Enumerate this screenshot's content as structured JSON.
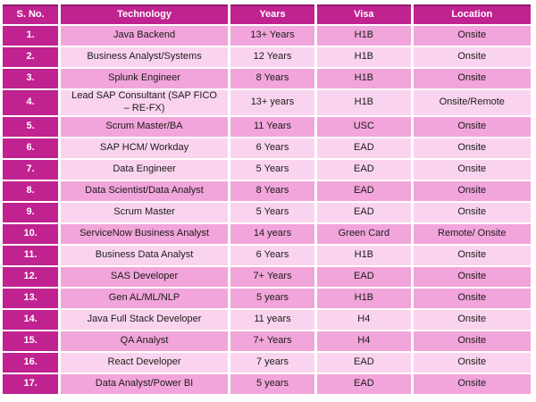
{
  "colors": {
    "header_bg": "#c02290",
    "header_border": "#8e1a6b",
    "header_text": "#ffffff",
    "row_dark": "#f2a5da",
    "row_light": "#fad4ee",
    "cell_text": "#1b1b1b",
    "page_bg": "#ffffff"
  },
  "table": {
    "columns": [
      {
        "key": "sno",
        "label": "S. No."
      },
      {
        "key": "technology",
        "label": "Technology"
      },
      {
        "key": "years",
        "label": "Years"
      },
      {
        "key": "visa",
        "label": "Visa"
      },
      {
        "key": "location",
        "label": "Location"
      }
    ],
    "rows": [
      {
        "sno": "1.",
        "technology": "Java Backend",
        "years": "13+ Years",
        "visa": "H1B",
        "location": "Onsite",
        "tone": "dark"
      },
      {
        "sno": "2.",
        "technology": "Business Analyst/Systems",
        "years": "12 Years",
        "visa": "H1B",
        "location": "Onsite",
        "tone": "light"
      },
      {
        "sno": "3.",
        "technology": "Splunk Engineer",
        "years": "8 Years",
        "visa": "H1B",
        "location": "Onsite",
        "tone": "dark"
      },
      {
        "sno": "4.",
        "technology": "Lead SAP Consultant (SAP FICO\n– RE-FX)",
        "years": "13+ years",
        "visa": "H1B",
        "location": "Onsite/Remote",
        "tone": "light"
      },
      {
        "sno": "5.",
        "technology": "Scrum Master/BA",
        "years": "11 Years",
        "visa": "USC",
        "location": "Onsite",
        "tone": "dark"
      },
      {
        "sno": "6.",
        "technology": "SAP HCM/ Workday",
        "years": "6 Years",
        "visa": "EAD",
        "location": "Onsite",
        "tone": "light"
      },
      {
        "sno": "7.",
        "technology": "Data Engineer",
        "years": "5 Years",
        "visa": "EAD",
        "location": "Onsite",
        "tone": "light"
      },
      {
        "sno": "8.",
        "technology": "Data Scientist/Data Analyst",
        "years": "8 Years",
        "visa": "EAD",
        "location": "Onsite",
        "tone": "dark"
      },
      {
        "sno": "9.",
        "technology": "Scrum Master",
        "years": "5 Years",
        "visa": "EAD",
        "location": "Onsite",
        "tone": "light"
      },
      {
        "sno": "10.",
        "technology": "ServiceNow Business Analyst",
        "years": "14 years",
        "visa": "Green Card",
        "location": "Remote/ Onsite",
        "tone": "dark"
      },
      {
        "sno": "11.",
        "technology": "Business Data Analyst",
        "years": "6 Years",
        "visa": "H1B",
        "location": "Onsite",
        "tone": "light"
      },
      {
        "sno": "12.",
        "technology": "SAS Developer",
        "years": "7+ Years",
        "visa": "EAD",
        "location": "Onsite",
        "tone": "dark"
      },
      {
        "sno": "13.",
        "technology": "Gen AL/ML/NLP",
        "years": "5 years",
        "visa": "H1B",
        "location": "Onsite",
        "tone": "dark"
      },
      {
        "sno": "14.",
        "technology": "Java Full Stack Developer",
        "years": "11 years",
        "visa": "H4",
        "location": "Onsite",
        "tone": "light"
      },
      {
        "sno": "15.",
        "technology": "QA Analyst",
        "years": "7+ Years",
        "visa": "H4",
        "location": "Onsite",
        "tone": "dark"
      },
      {
        "sno": "16.",
        "technology": "React Developer",
        "years": "7 years",
        "visa": "EAD",
        "location": "Onsite",
        "tone": "light"
      },
      {
        "sno": "17.",
        "technology": "Data Analyst/Power BI",
        "years": "5 years",
        "visa": "EAD",
        "location": "Onsite",
        "tone": "dark"
      }
    ]
  }
}
